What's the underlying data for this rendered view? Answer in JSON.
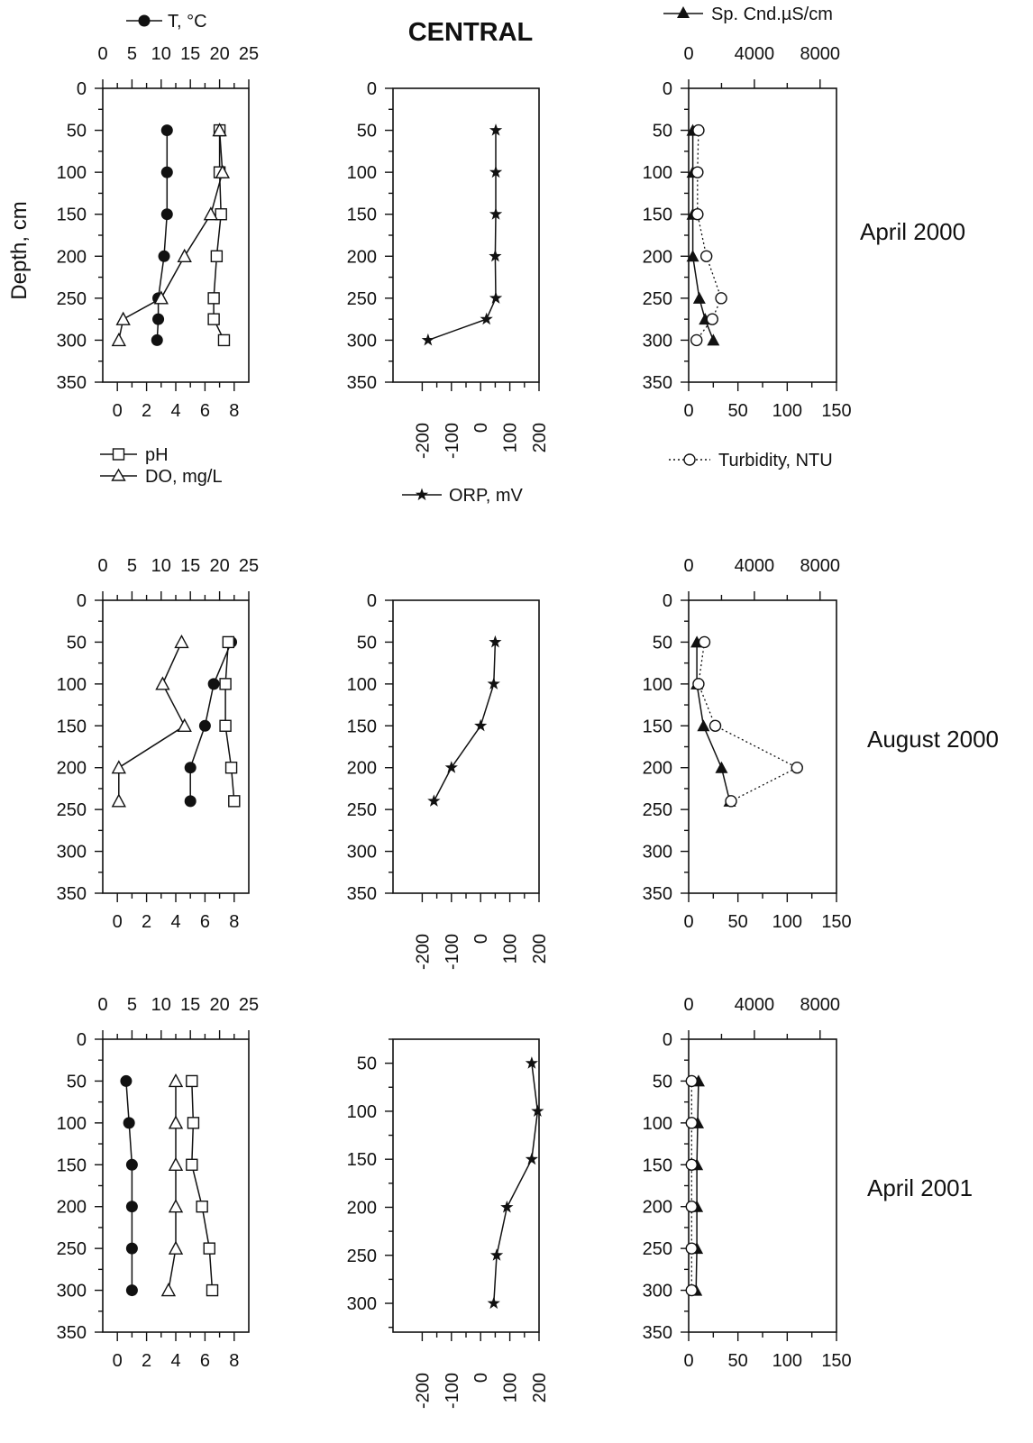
{
  "figure": {
    "title": "CENTRAL",
    "ylabel": "Depth, cm",
    "periods": [
      "April 2000",
      "August 2000",
      "April 2001"
    ],
    "legends": {
      "temperature": "T, °C",
      "ph": "pH",
      "do": "DO, mg/L",
      "orp": "ORP, mV",
      "conductance": "Sp. Cnd.µS/cm",
      "turbidity": "Turbidity, NTU"
    }
  },
  "chart_data": [
    {
      "type": "scatter",
      "title": "",
      "period": "April 2000",
      "ylabel": "Depth, cm",
      "ylim": [
        350,
        0
      ],
      "y_ticks": [
        0,
        50,
        100,
        150,
        200,
        250,
        300,
        350
      ],
      "x_top": {
        "label": "T, °C",
        "lim": [
          0,
          25
        ],
        "ticks": [
          0,
          5,
          10,
          15,
          20,
          25
        ]
      },
      "x_bottom": {
        "label": "pH, DO, mg/L",
        "lim": [
          -1,
          9
        ],
        "ticks": [
          0,
          2,
          4,
          6,
          8
        ]
      },
      "series": [
        {
          "name": "T, °C",
          "axis": "top",
          "marker": "filled-circle",
          "line": "solid",
          "points": [
            [
              11,
              50
            ],
            [
              11,
              100
            ],
            [
              11,
              150
            ],
            [
              10.5,
              200
            ],
            [
              9.5,
              250
            ],
            [
              9.5,
              275
            ],
            [
              9.3,
              300
            ]
          ]
        },
        {
          "name": "pH",
          "axis": "bottom",
          "marker": "open-square",
          "line": "solid",
          "points": [
            [
              7.0,
              50
            ],
            [
              7.0,
              100
            ],
            [
              7.1,
              150
            ],
            [
              6.8,
              200
            ],
            [
              6.6,
              250
            ],
            [
              6.6,
              275
            ],
            [
              7.3,
              300
            ]
          ]
        },
        {
          "name": "DO, mg/L",
          "axis": "bottom",
          "marker": "open-triangle",
          "line": "solid",
          "points": [
            [
              7.0,
              50
            ],
            [
              7.2,
              100
            ],
            [
              6.4,
              150
            ],
            [
              4.6,
              200
            ],
            [
              3.0,
              250
            ],
            [
              0.4,
              275
            ],
            [
              0.1,
              300
            ]
          ]
        }
      ]
    },
    {
      "type": "line",
      "title": "",
      "period": "April 2000",
      "ylim": [
        350,
        0
      ],
      "y_ticks": [
        0,
        50,
        100,
        150,
        200,
        250,
        300,
        350
      ],
      "x_bottom": {
        "label": "ORP, mV",
        "lim": [
          -300,
          200
        ],
        "ticks": [
          -200,
          -100,
          0,
          100,
          200
        ]
      },
      "series": [
        {
          "name": "ORP, mV",
          "axis": "bottom",
          "marker": "star",
          "line": "solid",
          "points": [
            [
              52,
              50
            ],
            [
              52,
              100
            ],
            [
              52,
              150
            ],
            [
              50,
              200
            ],
            [
              52,
              250
            ],
            [
              20,
              275
            ],
            [
              -180,
              300
            ]
          ]
        }
      ]
    },
    {
      "type": "scatter",
      "title": "",
      "period": "April 2000",
      "ylim": [
        350,
        0
      ],
      "y_ticks": [
        0,
        50,
        100,
        150,
        200,
        250,
        300,
        350
      ],
      "x_top": {
        "label": "Sp. Cnd.µS/cm",
        "lim": [
          0,
          9000
        ],
        "ticks": [
          0,
          4000,
          8000
        ]
      },
      "x_bottom": {
        "label": "Turbidity, NTU",
        "lim": [
          0,
          150
        ],
        "ticks": [
          0,
          50,
          100,
          150
        ]
      },
      "series": [
        {
          "name": "Sp. Cnd.µS/cm",
          "axis": "top",
          "marker": "filled-triangle",
          "line": "solid",
          "points": [
            [
              250,
              50
            ],
            [
              250,
              100
            ],
            [
              250,
              150
            ],
            [
              250,
              200
            ],
            [
              650,
              250
            ],
            [
              1000,
              275
            ],
            [
              1500,
              300
            ]
          ]
        },
        {
          "name": "Turbidity, NTU",
          "axis": "bottom",
          "marker": "open-circle",
          "line": "dotted",
          "points": [
            [
              10,
              50
            ],
            [
              9,
              100
            ],
            [
              9,
              150
            ],
            [
              18,
              200
            ],
            [
              33,
              250
            ],
            [
              24,
              275
            ],
            [
              8,
              300
            ]
          ]
        }
      ]
    },
    {
      "type": "scatter",
      "title": "",
      "period": "August 2000",
      "ylim": [
        350,
        0
      ],
      "y_ticks": [
        0,
        50,
        100,
        150,
        200,
        250,
        300,
        350
      ],
      "x_top": {
        "label": "T, °C",
        "lim": [
          0,
          25
        ],
        "ticks": [
          0,
          5,
          10,
          15,
          20,
          25
        ]
      },
      "x_bottom": {
        "label": "pH, DO, mg/L",
        "lim": [
          -1,
          9
        ],
        "ticks": [
          0,
          2,
          4,
          6,
          8
        ]
      },
      "series": [
        {
          "name": "T, °C",
          "axis": "top",
          "marker": "filled-circle",
          "line": "solid",
          "points": [
            [
              22,
              50
            ],
            [
              19,
              100
            ],
            [
              17.5,
              150
            ],
            [
              15,
              200
            ],
            [
              15,
              240
            ]
          ]
        },
        {
          "name": "pH",
          "axis": "bottom",
          "marker": "open-square",
          "line": "solid",
          "points": [
            [
              7.6,
              50
            ],
            [
              7.4,
              100
            ],
            [
              7.4,
              150
            ],
            [
              7.8,
              200
            ],
            [
              8.0,
              240
            ]
          ]
        },
        {
          "name": "DO, mg/L",
          "axis": "bottom",
          "marker": "open-triangle",
          "line": "solid",
          "points": [
            [
              4.4,
              50
            ],
            [
              3.1,
              100
            ],
            [
              4.6,
              150
            ],
            [
              0.1,
              200
            ],
            [
              0.1,
              240
            ]
          ]
        }
      ]
    },
    {
      "type": "line",
      "title": "",
      "period": "August 2000",
      "ylim": [
        350,
        0
      ],
      "y_ticks": [
        0,
        50,
        100,
        150,
        200,
        250,
        300,
        350
      ],
      "x_bottom": {
        "label": "ORP, mV",
        "lim": [
          -300,
          200
        ],
        "ticks": [
          -200,
          -100,
          0,
          100,
          200
        ]
      },
      "series": [
        {
          "name": "ORP, mV",
          "axis": "bottom",
          "marker": "star",
          "line": "solid",
          "points": [
            [
              50,
              50
            ],
            [
              45,
              100
            ],
            [
              0,
              150
            ],
            [
              -100,
              200
            ],
            [
              -160,
              240
            ]
          ]
        }
      ]
    },
    {
      "type": "scatter",
      "title": "",
      "period": "August 2000",
      "ylim": [
        350,
        0
      ],
      "y_ticks": [
        0,
        50,
        100,
        150,
        200,
        250,
        300,
        350
      ],
      "x_top": {
        "label": "Sp. Cnd.µS/cm",
        "lim": [
          0,
          9000
        ],
        "ticks": [
          0,
          4000,
          8000
        ]
      },
      "x_bottom": {
        "label": "Turbidity, NTU",
        "lim": [
          0,
          150
        ],
        "ticks": [
          0,
          50,
          100,
          150
        ]
      },
      "series": [
        {
          "name": "Sp. Cnd.µS/cm",
          "axis": "top",
          "marker": "filled-triangle",
          "line": "solid",
          "points": [
            [
              500,
              50
            ],
            [
              500,
              100
            ],
            [
              900,
              150
            ],
            [
              2000,
              200
            ],
            [
              2500,
              240
            ]
          ]
        },
        {
          "name": "Turbidity, NTU",
          "axis": "bottom",
          "marker": "open-circle",
          "line": "dotted",
          "points": [
            [
              16,
              50
            ],
            [
              10,
              100
            ],
            [
              27,
              150
            ],
            [
              110,
              200
            ],
            [
              43,
              240
            ]
          ]
        }
      ]
    },
    {
      "type": "scatter",
      "title": "",
      "period": "April 2001",
      "ylim": [
        350,
        0
      ],
      "y_ticks": [
        0,
        50,
        100,
        150,
        200,
        250,
        300,
        350
      ],
      "x_top": {
        "label": "T, °C",
        "lim": [
          0,
          25
        ],
        "ticks": [
          0,
          5,
          10,
          15,
          20,
          25
        ]
      },
      "x_bottom": {
        "label": "pH, DO, mg/L",
        "lim": [
          -1,
          9
        ],
        "ticks": [
          0,
          2,
          4,
          6,
          8
        ]
      },
      "series": [
        {
          "name": "T, °C",
          "axis": "top",
          "marker": "filled-circle",
          "line": "solid",
          "points": [
            [
              4,
              50
            ],
            [
              4.5,
              100
            ],
            [
              5,
              150
            ],
            [
              5,
              200
            ],
            [
              5,
              250
            ],
            [
              5,
              300
            ]
          ]
        },
        {
          "name": "pH",
          "axis": "bottom",
          "marker": "open-square",
          "line": "solid",
          "points": [
            [
              5.1,
              50
            ],
            [
              5.2,
              100
            ],
            [
              5.1,
              150
            ],
            [
              5.8,
              200
            ],
            [
              6.3,
              250
            ],
            [
              6.5,
              300
            ]
          ]
        },
        {
          "name": "DO, mg/L",
          "axis": "bottom",
          "marker": "open-triangle",
          "line": "solid",
          "points": [
            [
              4.0,
              50
            ],
            [
              4.0,
              100
            ],
            [
              4.0,
              150
            ],
            [
              4.0,
              200
            ],
            [
              4.0,
              250
            ],
            [
              3.5,
              300
            ]
          ]
        }
      ]
    },
    {
      "type": "line",
      "title": "",
      "period": "April 2001",
      "ylim": [
        330,
        25
      ],
      "y_ticks": [
        50,
        100,
        150,
        200,
        250,
        300
      ],
      "x_bottom": {
        "label": "ORP, mV",
        "lim": [
          -300,
          200
        ],
        "ticks": [
          -200,
          -100,
          0,
          100,
          200
        ]
      },
      "series": [
        {
          "name": "ORP, mV",
          "axis": "bottom",
          "marker": "star",
          "line": "solid",
          "points": [
            [
              175,
              50
            ],
            [
              195,
              100
            ],
            [
              175,
              150
            ],
            [
              90,
              200
            ],
            [
              55,
              250
            ],
            [
              45,
              300
            ]
          ]
        }
      ]
    },
    {
      "type": "scatter",
      "title": "",
      "period": "April 2001",
      "ylim": [
        350,
        0
      ],
      "y_ticks": [
        0,
        50,
        100,
        150,
        200,
        250,
        300,
        350
      ],
      "x_top": {
        "label": "Sp. Cnd.µS/cm",
        "lim": [
          0,
          9000
        ],
        "ticks": [
          0,
          4000,
          8000
        ]
      },
      "x_bottom": {
        "label": "Turbidity, NTU",
        "lim": [
          0,
          150
        ],
        "ticks": [
          0,
          50,
          100,
          150
        ]
      },
      "series": [
        {
          "name": "Sp. Cnd.µS/cm",
          "axis": "top",
          "marker": "filled-triangle",
          "line": "solid",
          "points": [
            [
              600,
              50
            ],
            [
              550,
              100
            ],
            [
              500,
              150
            ],
            [
              500,
              200
            ],
            [
              500,
              250
            ],
            [
              450,
              300
            ]
          ]
        },
        {
          "name": "Turbidity, NTU",
          "axis": "bottom",
          "marker": "open-circle",
          "line": "dotted",
          "points": [
            [
              3,
              50
            ],
            [
              3,
              100
            ],
            [
              3,
              150
            ],
            [
              3,
              200
            ],
            [
              3,
              250
            ],
            [
              3,
              300
            ]
          ]
        }
      ]
    }
  ]
}
